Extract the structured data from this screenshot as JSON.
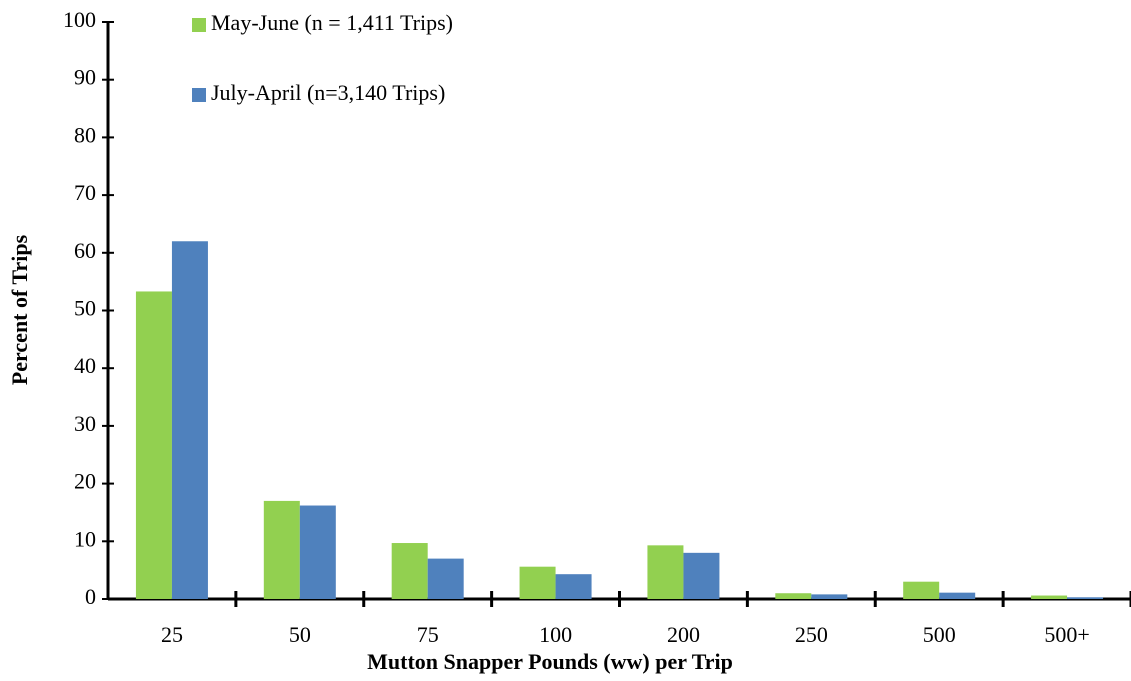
{
  "chart_data": {
    "type": "bar",
    "x_label": "Mutton Snapper Pounds (ww) per Trip",
    "y_label": "Percent of Trips",
    "categories": [
      "25",
      "50",
      "75",
      "100",
      "200",
      "250",
      "500",
      "500+"
    ],
    "series": [
      {
        "name": "May-June (n = 1,411 Trips)",
        "color": "#92d050",
        "values": [
          53.3,
          17,
          9.7,
          5.6,
          9.3,
          1,
          3,
          0.6
        ]
      },
      {
        "name": "July-April (n=3,140 Trips)",
        "color": "#4f81bd",
        "values": [
          62,
          16.2,
          7,
          4.3,
          8,
          0.8,
          1.1,
          0.3
        ]
      }
    ],
    "ylim": [
      0,
      100
    ],
    "yticks": [
      0,
      10,
      20,
      30,
      40,
      50,
      60,
      70,
      80,
      90,
      100
    ],
    "legend": "top-left"
  }
}
